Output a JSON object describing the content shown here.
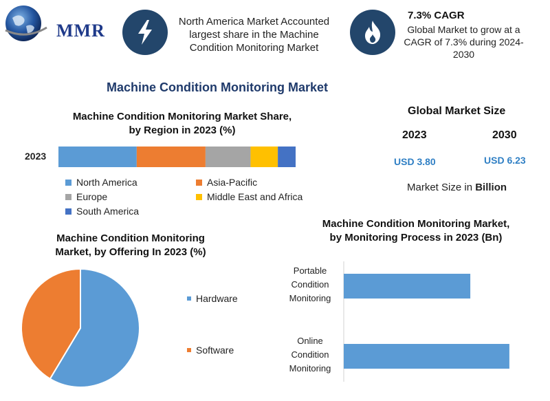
{
  "header": {
    "logo_text": "MMR",
    "north_america_text": "North America Market Accounted largest share in the Machine Condition Monitoring Market",
    "cagr_title": "7.3% CAGR",
    "cagr_text": "Global Market to grow at a CAGR of 7.3% during 2024-2030",
    "lightning_icon": "lightning-icon",
    "flame_icon": "flame-icon"
  },
  "main_title": "Machine Condition Monitoring Market",
  "global_market": {
    "title": "Global Market Size",
    "year_2023": "2023",
    "year_2030": "2030",
    "value_2023": "USD 3.80",
    "value_2030": "USD 6.23",
    "unit_prefix": "Market Size in ",
    "unit_bold": "Billion"
  },
  "chart_data": [
    {
      "type": "bar",
      "orientation": "horizontal-stacked",
      "title_line1": "Machine Condition Monitoring Market Share,",
      "title_line2": "by Region in 2023 (%)",
      "categories": [
        "2023"
      ],
      "series": [
        {
          "name": "North America",
          "values": [
            33
          ],
          "color": "#5b9bd5"
        },
        {
          "name": "Asia-Pacific",
          "values": [
            29
          ],
          "color": "#ed7d31"
        },
        {
          "name": "Europe",
          "values": [
            19
          ],
          "color": "#a5a5a5"
        },
        {
          "name": "Middle East and Africa",
          "values": [
            11.5
          ],
          "color": "#ffc000"
        },
        {
          "name": "South America",
          "values": [
            7.5
          ],
          "color": "#4472c4"
        }
      ]
    },
    {
      "type": "pie",
      "title_line1": "Machine Condition Monitoring",
      "title_line2": "Market, by Offering In 2023 (%)",
      "labels": [
        "Hardware",
        "Software"
      ],
      "values": [
        58.6,
        41.4
      ],
      "colors": [
        "#5b9bd5",
        "#ed7d31"
      ]
    },
    {
      "type": "bar",
      "orientation": "horizontal",
      "title_line1": "Machine Condition Monitoring Market,",
      "title_line2": "by Monitoring Process in 2023 (Bn)",
      "categories": [
        [
          "Portable",
          "Condition",
          "Monitoring"
        ],
        [
          "Online",
          "Condition",
          "Monitoring"
        ]
      ],
      "values": [
        1.62,
        2.12
      ],
      "xlim": [
        0,
        2.2
      ],
      "color": "#5b9bd5"
    }
  ]
}
